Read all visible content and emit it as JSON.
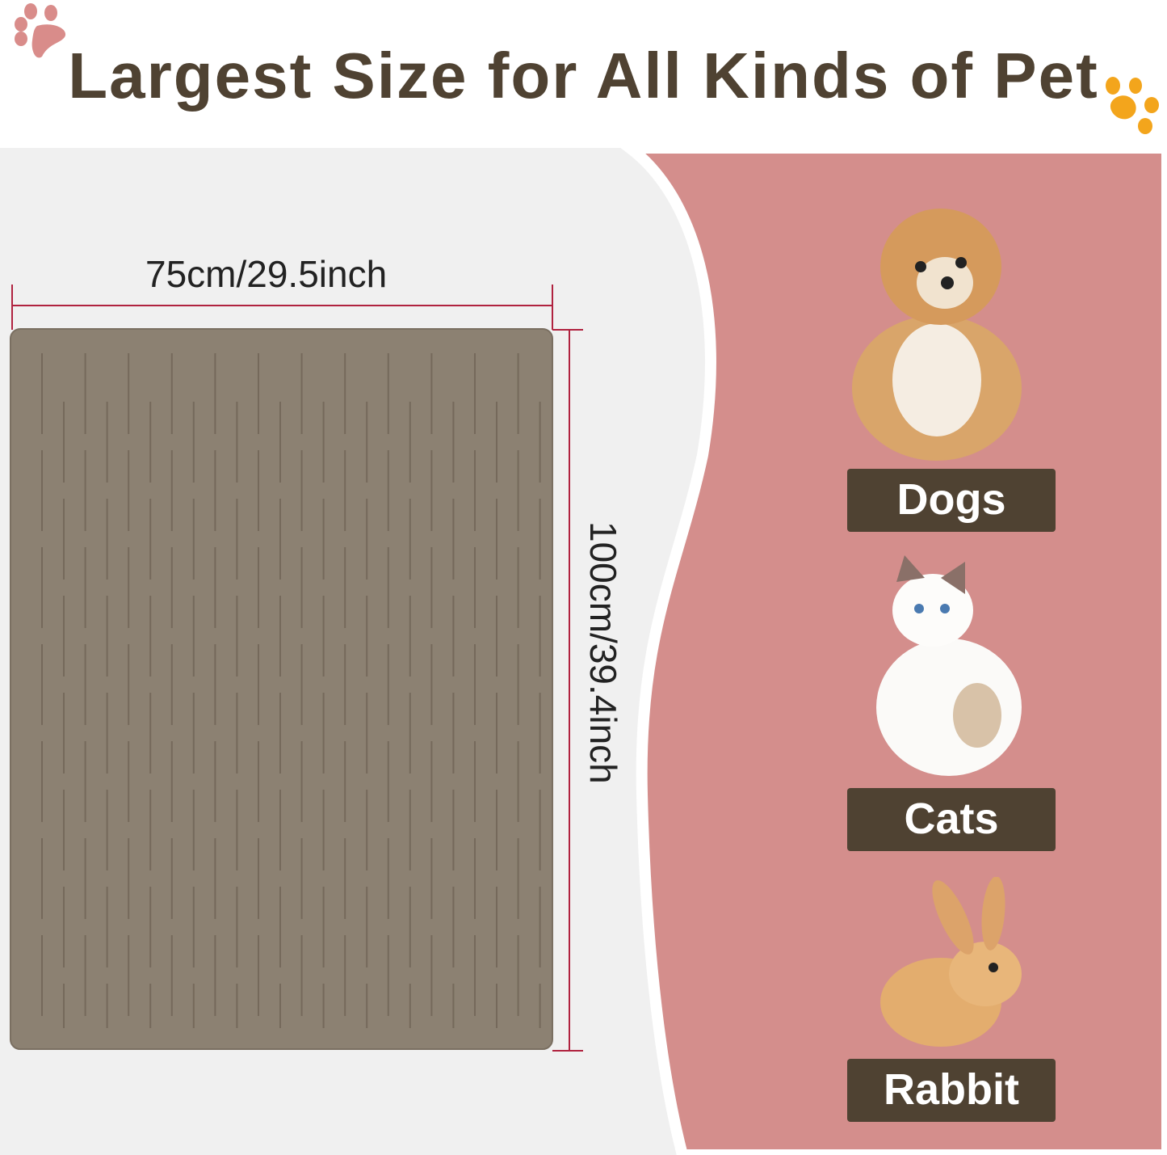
{
  "title": "Largest Size for All Kinds of Pet",
  "dimensions": {
    "width": "75cm/29.5inch",
    "height": "100cm/39.4inch"
  },
  "pets": [
    {
      "label": "Dogs",
      "icon": "dog-image"
    },
    {
      "label": "Cats",
      "icon": "cat-image"
    },
    {
      "label": "Rabbit",
      "icon": "rabbit-image"
    }
  ],
  "colors": {
    "title": "#4f4232",
    "mat": "#8c8172",
    "panel": "#d48e8c",
    "dimension_line": "#b0223f",
    "label_bg": "#4f4232",
    "paw_left": "#d98c8a",
    "paw_right": "#f3a51c"
  }
}
